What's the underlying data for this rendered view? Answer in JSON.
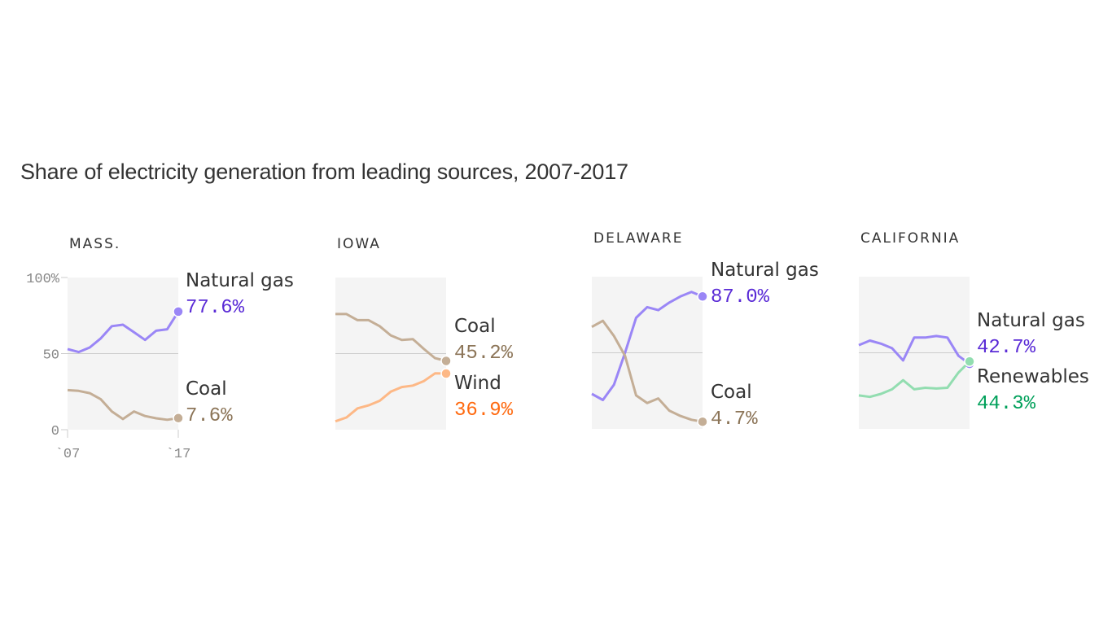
{
  "chart_data": {
    "title": "Share of electricity generation from leading sources, 2007-2017",
    "type": "line",
    "x": [
      2007,
      2008,
      2009,
      2010,
      2011,
      2012,
      2013,
      2014,
      2015,
      2016,
      2017
    ],
    "ylim": [
      0,
      100
    ],
    "yticks": [
      "100%",
      "50",
      "0"
    ],
    "xticks": [
      "`07",
      "`17"
    ],
    "colors": {
      "gas_line": "#9a86f6",
      "gas_text": "#5a2bd6",
      "coal_line": "#c4ae96",
      "coal_text": "#8c7558",
      "wind_line": "#fdb886",
      "wind_text": "#ff6a10",
      "renew_line": "#92ddb0",
      "renew_text": "#00a05a",
      "panel_bg": "#f4f4f4"
    },
    "panels": [
      {
        "state": "MASS.",
        "series": [
          {
            "name": "Natural gas",
            "label": "77.6%",
            "color": "gas",
            "values": [
              53,
              51,
              54,
              60,
              68,
              69,
              64,
              59,
              65,
              66,
              77.6
            ]
          },
          {
            "name": "Coal",
            "label": "7.6%",
            "color": "coal",
            "values": [
              26,
              25.5,
              24,
              20,
              12,
              7,
              12,
              9,
              7.5,
              6.5,
              7.6
            ]
          }
        ]
      },
      {
        "state": "IOWA",
        "series": [
          {
            "name": "Coal",
            "label": "45.2%",
            "color": "coal",
            "values": [
              76,
              76,
              72,
              72,
              68,
              62,
              59,
              59.5,
              53,
              47,
              45.2
            ]
          },
          {
            "name": "Wind",
            "label": "36.9%",
            "color": "wind",
            "values": [
              5.5,
              8,
              14,
              16,
              19,
              25,
              28,
              29,
              32,
              37,
              36.9
            ]
          }
        ]
      },
      {
        "state": "DELAWARE",
        "series": [
          {
            "name": "Natural gas",
            "label": "87.0%",
            "color": "gas",
            "values": [
              23,
              19,
              29,
              50,
              73,
              80,
              78,
              83,
              87,
              90,
              87.0
            ]
          },
          {
            "name": "Coal",
            "label": "4.7%",
            "color": "coal",
            "values": [
              67,
              71,
              61,
              48,
              22,
              17,
              20,
              12,
              8.5,
              6,
              4.7
            ]
          }
        ]
      },
      {
        "state": "CALIFORNIA",
        "series": [
          {
            "name": "Natural gas",
            "label": "42.7%",
            "color": "gas",
            "values": [
              55,
              58,
              56,
              53,
              45,
              60,
              60,
              61,
              60,
              48,
              42.7
            ]
          },
          {
            "name": "Renewables",
            "label": "44.3%",
            "color": "renew",
            "values": [
              22,
              21,
              23,
              26,
              32,
              26,
              27,
              26.5,
              27,
              37,
              44.3
            ]
          }
        ]
      }
    ]
  }
}
